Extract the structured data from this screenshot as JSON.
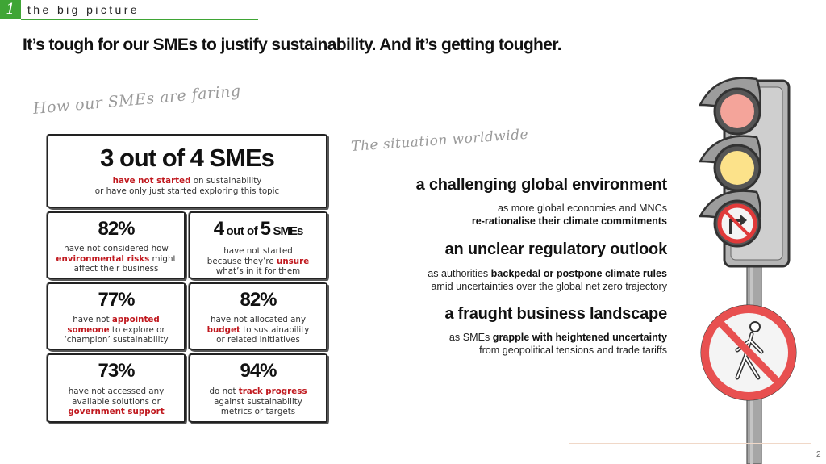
{
  "section": {
    "number": "1",
    "label": "the big picture"
  },
  "headline": "It’s tough for our SMEs to justify sustainability. And it’s getting tougher.",
  "left_heading": "How our SMEs are faring",
  "right_heading": "The situation worldwide",
  "stats": {
    "hero": {
      "value": "3 out of 4 SMEs",
      "red": "have not started",
      "line1_rest": " on sustainability",
      "line2": "or have only just started exploring this topic"
    },
    "s1": {
      "value": "82%",
      "l1": "have not considered how",
      "red": "environmental risks",
      "l2_rest": " might",
      "l3": "affect their business"
    },
    "s2": {
      "num1": "4",
      "mid": "out of",
      "num2": "5",
      "tail": "SMEs",
      "l1": "have not started",
      "l2_pre": "because they’re ",
      "red": "unsure",
      "l3": "what’s in it for them"
    },
    "s3": {
      "value": "77%",
      "l1_pre": "have not ",
      "red1": "appointed",
      "red2": "someone",
      "l2_rest": " to explore or",
      "l3": "‘champion’ sustainability"
    },
    "s4": {
      "value": "82%",
      "l1": "have not allocated any",
      "red": "budget",
      "l2_rest": " to sustainability",
      "l3": "or related initiatives"
    },
    "s5": {
      "value": "73%",
      "l1": "have not accessed any",
      "l2": "available solutions or",
      "red": "government support"
    },
    "s6": {
      "value": "94%",
      "l1_pre": "do not ",
      "red": "track progress",
      "l2": "against sustainability",
      "l3": "metrics or targets"
    }
  },
  "points": [
    {
      "title": "a challenging global environment",
      "line1": "as more global economies and MNCs",
      "line2_bold": "re-rationalise their climate commitments"
    },
    {
      "title": "an unclear regulatory outlook",
      "line1_pre": "as authorities ",
      "line1_bold": "backpedal or postpone climate rules",
      "line2": "amid uncertainties over the global net zero trajectory"
    },
    {
      "title": "a fraught business landscape",
      "line1_pre": "as SMEs ",
      "line1_bold": "grapple with heightened uncertainty",
      "line2": "from geopolitical tensions and trade tariffs"
    }
  ],
  "page_number": "2",
  "colors": {
    "accent_green": "#3fa535",
    "highlight_red": "#c0181e",
    "light_red": "#f4a49a",
    "light_yellow": "#fce28a",
    "sign_red": "#e03a3a"
  },
  "illustrations": [
    "traffic-light-icon",
    "no-right-turn-sign-icon",
    "no-pedestrian-sign-icon"
  ]
}
